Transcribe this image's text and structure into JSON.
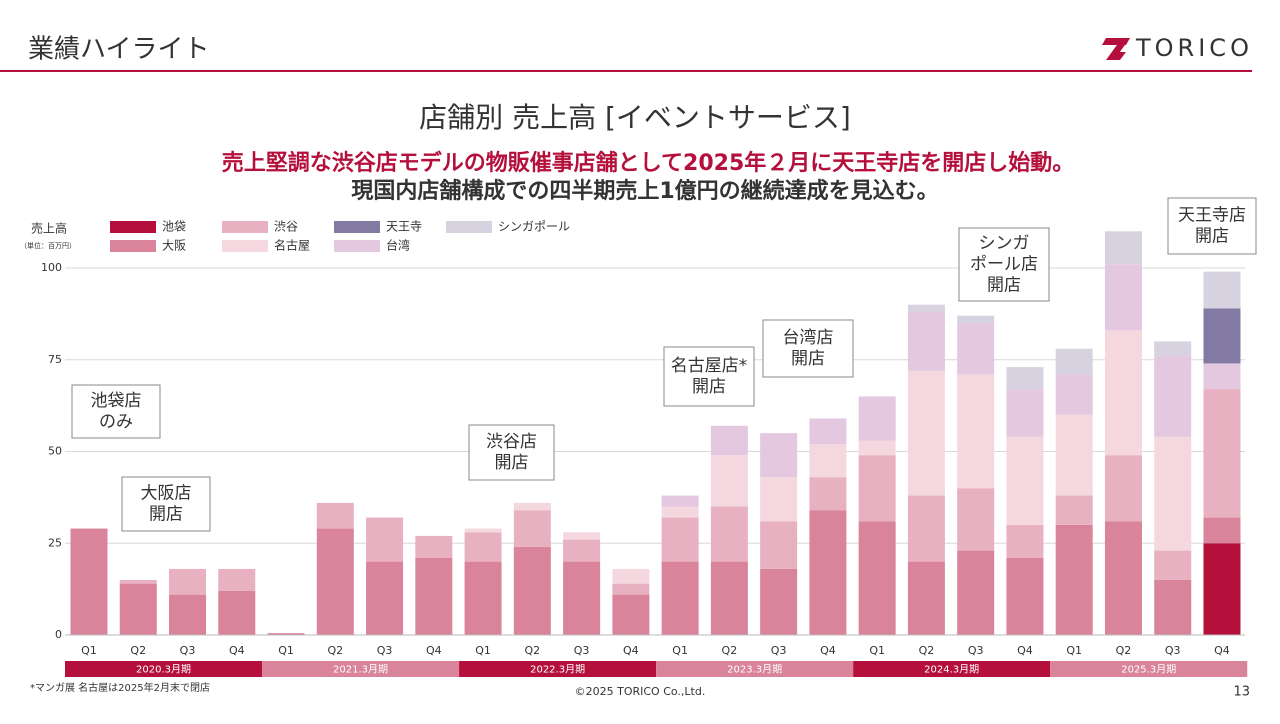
{
  "header": {
    "title": "業績ハイライト",
    "logo": "TORICO"
  },
  "chart_data": {
    "type": "stacked_bar",
    "title": "店舗別 売上高 [イベントサービス]",
    "subtitle": [
      "売上堅調な渋谷店モデルの物販催事店舗として2025年２月に天王寺店を開店し始動。",
      "現国内店舗構成での四半期売上1億円の継続達成を見込む。"
    ],
    "y_label": "売上高",
    "y_unit": "（単位：百万円）",
    "categories": [
      "Q1",
      "Q2",
      "Q3",
      "Q4",
      "Q1",
      "Q2",
      "Q3",
      "Q4",
      "Q1",
      "Q2",
      "Q3",
      "Q4",
      "Q1",
      "Q2",
      "Q3",
      "Q4",
      "Q1",
      "Q2",
      "Q3",
      "Q4",
      "Q1",
      "Q2",
      "Q3",
      "Q4"
    ],
    "periods": [
      "2020.3月期",
      "2021.3月期",
      "2022.3月期",
      "2023.3月期",
      "2024.3月期",
      "2025.3月期"
    ],
    "series": [
      {
        "name": "池袋",
        "color": "#b5103c",
        "values": [
          0,
          0,
          0,
          0,
          0,
          0,
          0,
          0,
          0,
          0,
          0,
          0,
          0,
          0,
          0,
          0,
          0,
          0,
          0,
          0,
          0,
          0,
          0,
          25
        ]
      },
      {
        "name": "大阪",
        "color": "#d9849b",
        "values": [
          29,
          14,
          11,
          12,
          0.5,
          29,
          20,
          21,
          20,
          24,
          20,
          11,
          20,
          20,
          18,
          34,
          31,
          20,
          23,
          21,
          30,
          31,
          15,
          7
        ]
      },
      {
        "name": "渋谷",
        "color": "#e8b1c1",
        "values": [
          0,
          1,
          7,
          6,
          0,
          7,
          12,
          6,
          8,
          10,
          6,
          3,
          12,
          15,
          13,
          9,
          18,
          18,
          17,
          9,
          8,
          18,
          8,
          35
        ]
      },
      {
        "name": "名古屋",
        "color": "#f5d8df",
        "values": [
          0,
          0,
          0,
          0,
          0,
          0,
          0,
          0,
          1,
          2,
          2,
          4,
          3,
          14,
          12,
          9,
          4,
          34,
          31,
          24,
          22,
          34,
          31,
          0
        ]
      },
      {
        "name": "台湾",
        "color": "#e3c8e0",
        "values": [
          0,
          0,
          0,
          0,
          0,
          0,
          0,
          0,
          0,
          0,
          0,
          0,
          3,
          8,
          12,
          7,
          12,
          16,
          14,
          13,
          11,
          18,
          22,
          7
        ]
      },
      {
        "name": "天王寺",
        "color": "#837aa3",
        "values": [
          0,
          0,
          0,
          0,
          0,
          0,
          0,
          0,
          0,
          0,
          0,
          0,
          0,
          0,
          0,
          0,
          0,
          0,
          0,
          0,
          0,
          0,
          0,
          15
        ]
      },
      {
        "name": "シンガポール",
        "color": "#d6d2e0",
        "values": [
          0,
          0,
          0,
          0,
          0,
          0,
          0,
          0,
          0,
          0,
          0,
          0,
          0,
          0,
          0,
          0,
          0,
          2,
          2,
          6,
          7,
          9,
          4,
          10
        ]
      }
    ],
    "ylim": [
      0,
      100
    ],
    "yticks": [
      0,
      25,
      50,
      75,
      100
    ],
    "grid": true,
    "annotations": [
      [
        "池袋店",
        "のみ"
      ],
      [
        "大阪店",
        "開店"
      ],
      [
        "渋谷店",
        "開店"
      ],
      [
        "名古屋店*",
        "開店"
      ],
      [
        "台湾店",
        "開店"
      ],
      [
        "シンガ",
        "ポール店",
        "開店"
      ],
      [
        "天王寺店",
        "開店"
      ]
    ]
  },
  "footer": {
    "note": "*マンガ展 名古屋は2025年2月末で閉店",
    "copyright": "©2025 TORICO Co.,Ltd.",
    "page": "13"
  }
}
